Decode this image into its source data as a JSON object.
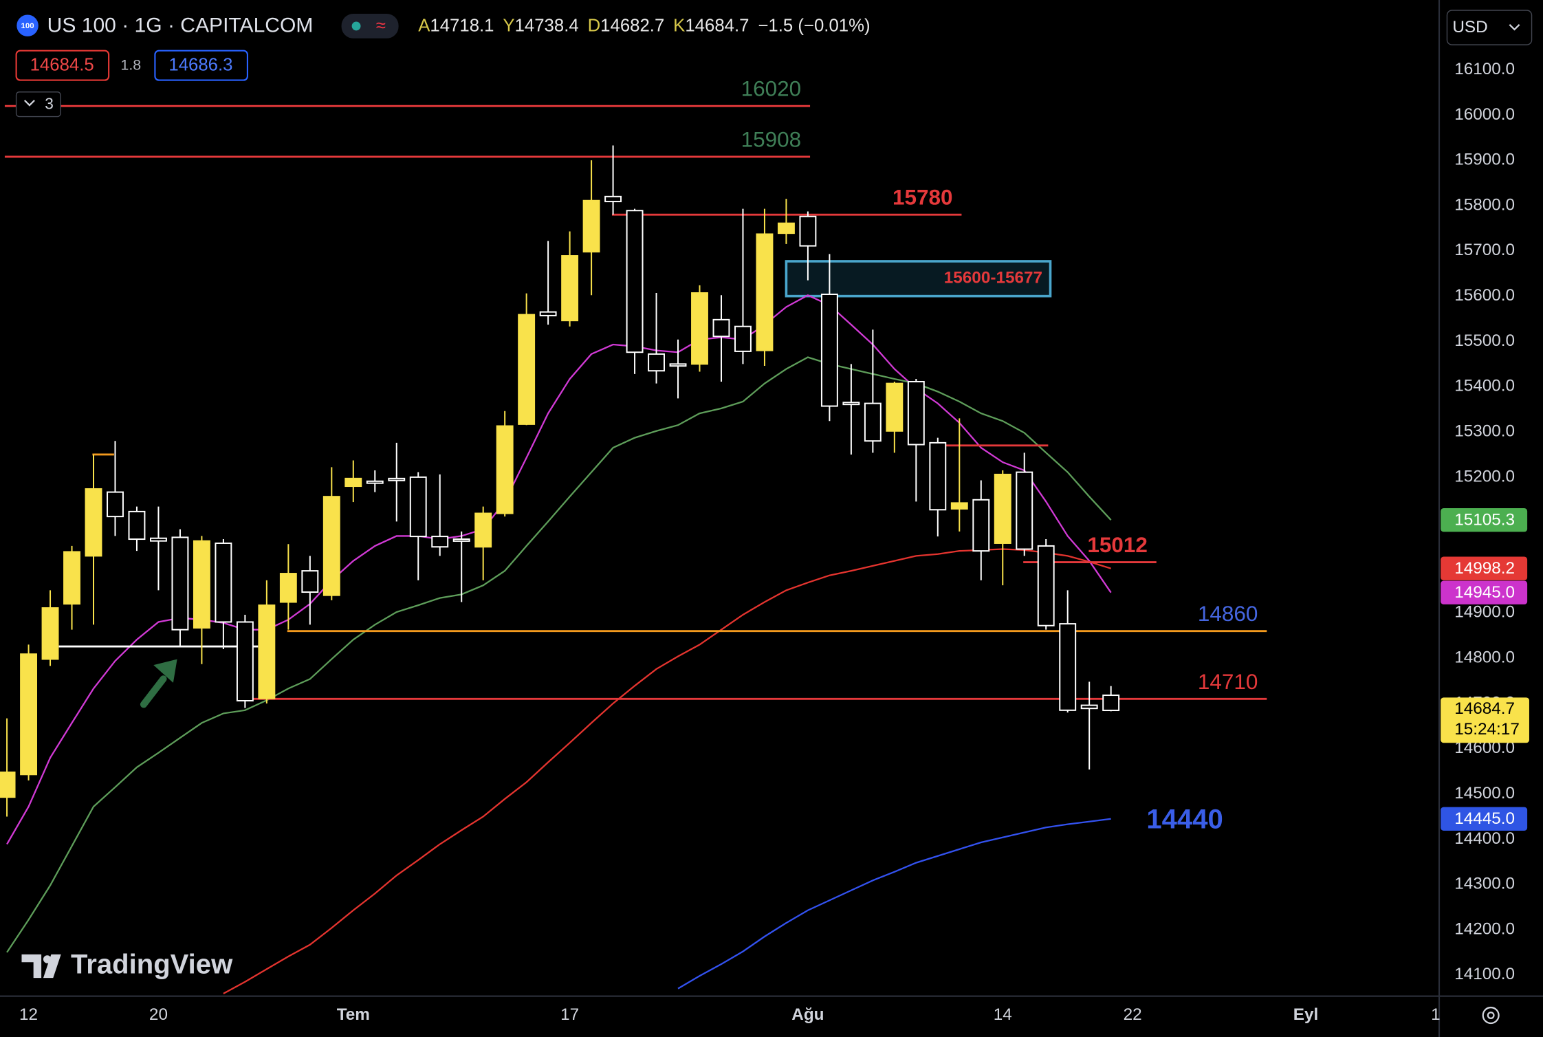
{
  "header": {
    "symbol_icon": "100",
    "title": "US 100 · 1G · CAPITALCOM",
    "status_icon": "≈",
    "ohlc": [
      {
        "key": "A",
        "value": 14718.1
      },
      {
        "key": "Y",
        "value": 14738.4
      },
      {
        "key": "D",
        "value": 14682.7
      },
      {
        "key": "K",
        "value": 14684.7
      }
    ],
    "change": "−1.5 (−0.01%)",
    "bid": 14684.5,
    "spread": 1.8,
    "ask": 14686.3,
    "indicators_count": 3,
    "currency": "USD",
    "logo": "TradingView"
  },
  "chart_data": {
    "type": "candlestick",
    "categories": [
      null,
      null,
      null,
      null,
      null,
      null,
      null,
      null,
      null,
      null,
      null,
      null,
      null,
      null,
      null,
      null,
      null,
      null,
      null,
      null,
      null,
      null,
      null,
      null,
      null,
      null,
      null,
      null,
      null,
      null,
      null,
      null,
      null,
      null,
      null,
      null,
      null,
      null,
      null,
      null,
      null,
      null,
      null,
      null,
      null,
      null,
      null,
      null,
      null,
      null,
      null,
      null
    ],
    "open": [
      14493,
      14543,
      14798,
      14920,
      15026,
      15167,
      15124,
      15065,
      15067,
      14867,
      15054,
      14880,
      14711,
      14924,
      14993,
      14939,
      15180,
      15191,
      15197,
      15200,
      15069,
      15063,
      15046,
      15120,
      15317,
      15565,
      15546,
      15698,
      15820,
      15789,
      15472,
      15450,
      15450,
      15548,
      15533,
      15480,
      15739,
      15776,
      15604,
      15365,
      15363,
      15302,
      15411,
      15276,
      15130,
      15150,
      15054,
      15211,
      15048,
      14876,
      14696,
      14718.1
    ],
    "high": [
      14667,
      14830,
      14950,
      15048,
      15250,
      15280,
      15135,
      15135,
      15085,
      15070,
      15063,
      14896,
      14972,
      15052,
      15026,
      15222,
      15237,
      15215,
      15276,
      15211,
      15206,
      15080,
      15135,
      15346,
      15606,
      15722,
      15743,
      15900,
      15933,
      15793,
      15607,
      15504,
      15624,
      15602,
      15793,
      15793,
      15815,
      15787,
      15693,
      15450,
      15526,
      15411,
      15417,
      15287,
      15330,
      15193,
      15215,
      15254,
      15063,
      14950,
      14748,
      14738.4
    ],
    "low": [
      14450,
      14530,
      14783,
      14863,
      14874,
      15070,
      15037,
      14950,
      14824,
      14787,
      14820,
      14690,
      14700,
      14863,
      14874,
      14928,
      15145,
      15167,
      15102,
      14972,
      15026,
      14924,
      14972,
      15113,
      15315,
      15537,
      15533,
      15602,
      15780,
      15428,
      15407,
      15374,
      15433,
      15411,
      15450,
      15446,
      15715,
      15635,
      15324,
      15250,
      15254,
      15254,
      15146,
      15069,
      15080,
      14972,
      14961,
      15026,
      14863,
      14680,
      14554,
      14682.7
    ],
    "close": [
      14548,
      14809,
      14911,
      15035,
      15174,
      15113,
      15063,
      15059,
      14863,
      15059,
      14880,
      14706,
      14917,
      14987,
      14946,
      15157,
      15197,
      15187,
      15193,
      15069,
      15046,
      15059,
      15120,
      15313,
      15559,
      15557,
      15689,
      15811,
      15809,
      15476,
      15435,
      15446,
      15607,
      15511,
      15478,
      15737,
      15761,
      15711,
      15357,
      15361,
      15280,
      15407,
      15272,
      15128,
      15143,
      15037,
      15206,
      15041,
      14872,
      14685,
      14689,
      14684.7
    ],
    "up_color": "#f9e24b",
    "down_color": "#ffffff",
    "series": [
      {
        "color": "#d23ad6",
        "values": [
          14389,
          14472,
          14580,
          14657,
          14733,
          14794,
          14841,
          14880,
          14889,
          14885,
          14878,
          14863,
          14863,
          14885,
          14920,
          14972,
          15015,
          15048,
          15070,
          15070,
          15063,
          15070,
          15085,
          15146,
          15243,
          15341,
          15417,
          15472,
          15493,
          15489,
          15480,
          15476,
          15504,
          15509,
          15504,
          15537,
          15576,
          15602,
          15580,
          15537,
          15493,
          15439,
          15396,
          15363,
          15320,
          15265,
          15233,
          15215,
          15146,
          15070,
          15015,
          14945
        ]
      },
      {
        "color": "#5e9e5a",
        "values": [
          14150,
          14222,
          14298,
          14385,
          14472,
          14515,
          14559,
          14591,
          14624,
          14657,
          14678,
          14685,
          14707,
          14733,
          14754,
          14798,
          14841,
          14874,
          14902,
          14917,
          14933,
          14941,
          14961,
          14993,
          15048,
          15102,
          15157,
          15211,
          15265,
          15287,
          15302,
          15315,
          15341,
          15352,
          15367,
          15407,
          15439,
          15465,
          15450,
          15439,
          15428,
          15417,
          15407,
          15389,
          15367,
          15341,
          15324,
          15298,
          15254,
          15211,
          15157,
          15105.3
        ]
      },
      {
        "color": "#e5342f",
        "values": [
          null,
          null,
          null,
          null,
          null,
          null,
          null,
          null,
          null,
          null,
          14059,
          14085,
          14113,
          14141,
          14167,
          14204,
          14243,
          14280,
          14320,
          14354,
          14389,
          14420,
          14450,
          14489,
          14526,
          14570,
          14613,
          14657,
          14700,
          14739,
          14776,
          14804,
          14830,
          14863,
          14896,
          14924,
          14950,
          14967,
          14983,
          14993,
          15004,
          15015,
          15026,
          15030,
          15037,
          15039,
          15041,
          15039,
          15033,
          15026,
          15013,
          14998.2
        ]
      },
      {
        "color": "#3352f0",
        "values": [
          null,
          null,
          null,
          null,
          null,
          null,
          null,
          null,
          null,
          null,
          null,
          null,
          null,
          null,
          null,
          null,
          null,
          null,
          null,
          null,
          null,
          null,
          null,
          null,
          null,
          null,
          null,
          null,
          null,
          null,
          null,
          14070,
          14098,
          14124,
          14152,
          14185,
          14215,
          14243,
          14265,
          14287,
          14309,
          14328,
          14348,
          14363,
          14378,
          14393,
          14404,
          14415,
          14426,
          14433,
          14439,
          14445
        ]
      }
    ],
    "levels": [
      {
        "value": 16020,
        "from": -0.1,
        "to": 37.1,
        "color": "#e5393b",
        "label_color": "#3f7f57",
        "bold": false
      },
      {
        "value": 15908,
        "from": -0.1,
        "to": 37.1,
        "color": "#e5393b",
        "label_color": "#3f7f57",
        "bold": false
      },
      {
        "value": 15780,
        "from": 27.95,
        "to": 44.1,
        "color": "#e5393b",
        "label_color": "#e5393b",
        "bold": true
      },
      {
        "value": 15012,
        "from": 46.95,
        "to": 53.1,
        "color": "#e5393b",
        "label_color": "#e5393b",
        "bold": true
      },
      {
        "value": 14860,
        "from": 12.95,
        "to": 58.2,
        "color": "#f39a1e",
        "label_color": "#4566e0",
        "bold": false
      },
      {
        "value": 14710,
        "from": 10.95,
        "to": 58.2,
        "color": "#e5393b",
        "label_color": "#e5393b",
        "bold": false
      }
    ],
    "lines": [
      {
        "value": 15270,
        "from": 42.95,
        "to": 48.1,
        "color": "#e5393b"
      },
      {
        "value": 14826,
        "from": 2.4,
        "to": 11.6,
        "color": "#ffffff"
      },
      {
        "value": 15250,
        "from": 3.95,
        "to": 4.95,
        "color": "#f39a1e"
      }
    ],
    "zone": {
      "low": 15600,
      "high": 15677,
      "from": 36,
      "to": 48.2,
      "label": "15600-15677",
      "color": "#4aa6cc",
      "label_color": "#e5393b"
    },
    "annotation": {
      "value": 14440,
      "color": "#3a5ee8"
    },
    "badges": [
      {
        "value": 15105.3,
        "color": "#4caf50",
        "text_color": "#ffffff"
      },
      {
        "value": 14998.2,
        "color": "#e53935",
        "text_color": "#ffffff"
      },
      {
        "value": {
          "value": 14945,
          "label": "14945.0"
        },
        "color": "#cc33cc",
        "text_color": "#ffffff"
      },
      {
        "value": {
          "value": 14445,
          "label": "14445.0"
        },
        "color": "#2f55e4",
        "text_color": "#ffffff"
      }
    ],
    "last_price": {
      "value": 14684.7,
      "countdown": "15:24:17",
      "color": "#f9e24b",
      "text_color": "#000000"
    },
    "xlim": [
      -0.32,
      66.14
    ],
    "xticks": [
      {
        "value": 1,
        "label": "12"
      },
      {
        "value": 7,
        "label": "20"
      },
      {
        "value": 16,
        "label": "Tem"
      },
      {
        "value": 26,
        "label": "17"
      },
      {
        "value": 37,
        "label": "Ağu"
      },
      {
        "value": 46,
        "label": "14"
      },
      {
        "value": 52,
        "label": "22"
      },
      {
        "value": 60,
        "label": "Eyl"
      },
      {
        "value": 66,
        "label": "1"
      }
    ],
    "ylim": [
      14054.3,
      16254.3
    ],
    "yticks": [
      {
        "value": 14100,
        "label": "14100.0"
      },
      {
        "value": 14200,
        "label": "14200.0"
      },
      {
        "value": 14300,
        "label": "14300.0"
      },
      {
        "value": 14400,
        "label": "14400.0"
      },
      {
        "value": 14500,
        "label": "14500.0"
      },
      {
        "value": 14600,
        "label": "14600.0"
      },
      {
        "value": 14700,
        "label": "14700.0"
      },
      {
        "value": 14800,
        "label": "14800.0"
      },
      {
        "value": 14900,
        "label": "14900.0"
      },
      {
        "value": 15000,
        "label": "15000.0"
      },
      {
        "value": 15100,
        "label": "15100.0"
      },
      {
        "value": 15200,
        "label": "15200.0"
      },
      {
        "value": 15300,
        "label": "15300.0"
      },
      {
        "value": 15400,
        "label": "15400.0"
      },
      {
        "value": 15500,
        "label": "15500.0"
      },
      {
        "value": 15600,
        "label": "15600.0"
      },
      {
        "value": 15700,
        "label": "15700.0"
      },
      {
        "value": 15800,
        "label": "15800.0"
      },
      {
        "value": 15900,
        "label": "15900.0"
      },
      {
        "value": 16000,
        "label": "16000.0"
      },
      {
        "value": 16100,
        "label": "16100.0"
      }
    ],
    "grid": false
  }
}
